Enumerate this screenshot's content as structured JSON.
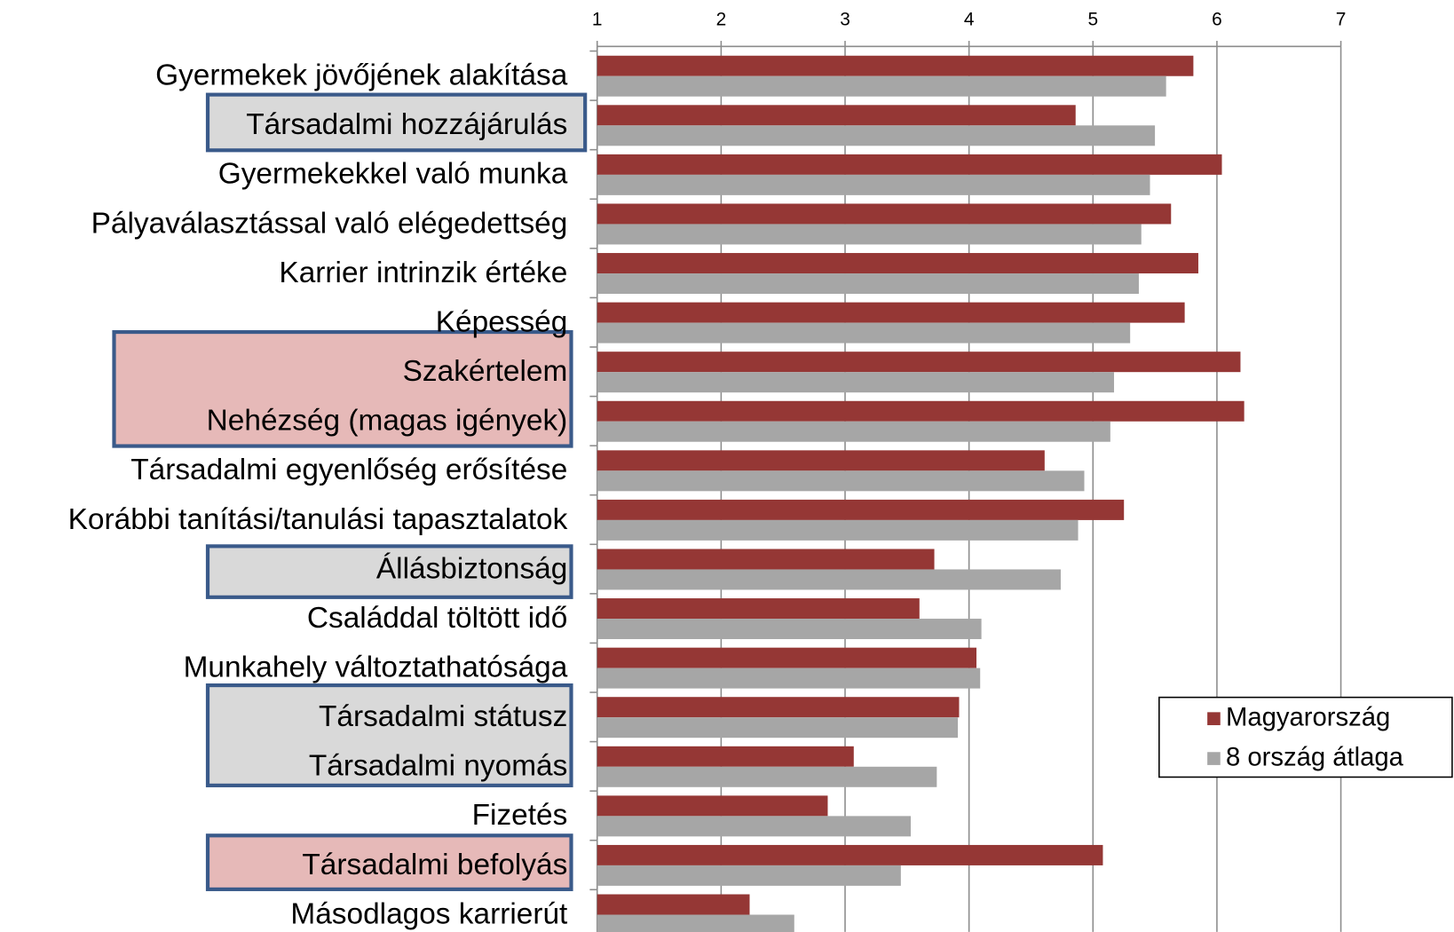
{
  "chart_data": {
    "type": "bar",
    "orientation": "horizontal",
    "categories": [
      "Gyermekek jövőjének alakítása",
      "Társadalmi hozzájárulás",
      "Gyermekekkel való munka",
      "Pályaválasztással való elégedettség",
      "Karrier intrinzik értéke",
      "Képesség",
      "Szakértelem",
      "Nehézség (magas igények)",
      "Társadalmi egyenlőség erősítése",
      "Korábbi tanítási/tanulási tapasztalatok",
      "Állásbiztonság",
      "Családdal töltött idő",
      "Munkahely változtathatósága",
      "Társadalmi státusz",
      "Társadalmi nyomás",
      "Fizetés",
      "Társadalmi befolyás",
      "Másodlagos karrierút"
    ],
    "series": [
      {
        "name": "Magyarország",
        "color": "#953735",
        "values": [
          5.81,
          4.86,
          6.04,
          5.63,
          5.85,
          5.74,
          6.19,
          6.22,
          4.61,
          5.25,
          3.72,
          3.6,
          4.06,
          3.92,
          3.07,
          2.86,
          5.08,
          2.23
        ]
      },
      {
        "name": "8 ország átlaga",
        "color": "#a6a6a6",
        "values": [
          5.59,
          5.5,
          5.46,
          5.39,
          5.37,
          5.3,
          5.17,
          5.14,
          4.93,
          4.88,
          4.74,
          4.1,
          4.09,
          3.91,
          3.74,
          3.53,
          3.45,
          2.59
        ]
      }
    ],
    "xlim": [
      1,
      7
    ],
    "xticks": [
      1,
      2,
      3,
      4,
      5,
      6,
      7
    ],
    "grid": true,
    "legend": "right"
  }
}
